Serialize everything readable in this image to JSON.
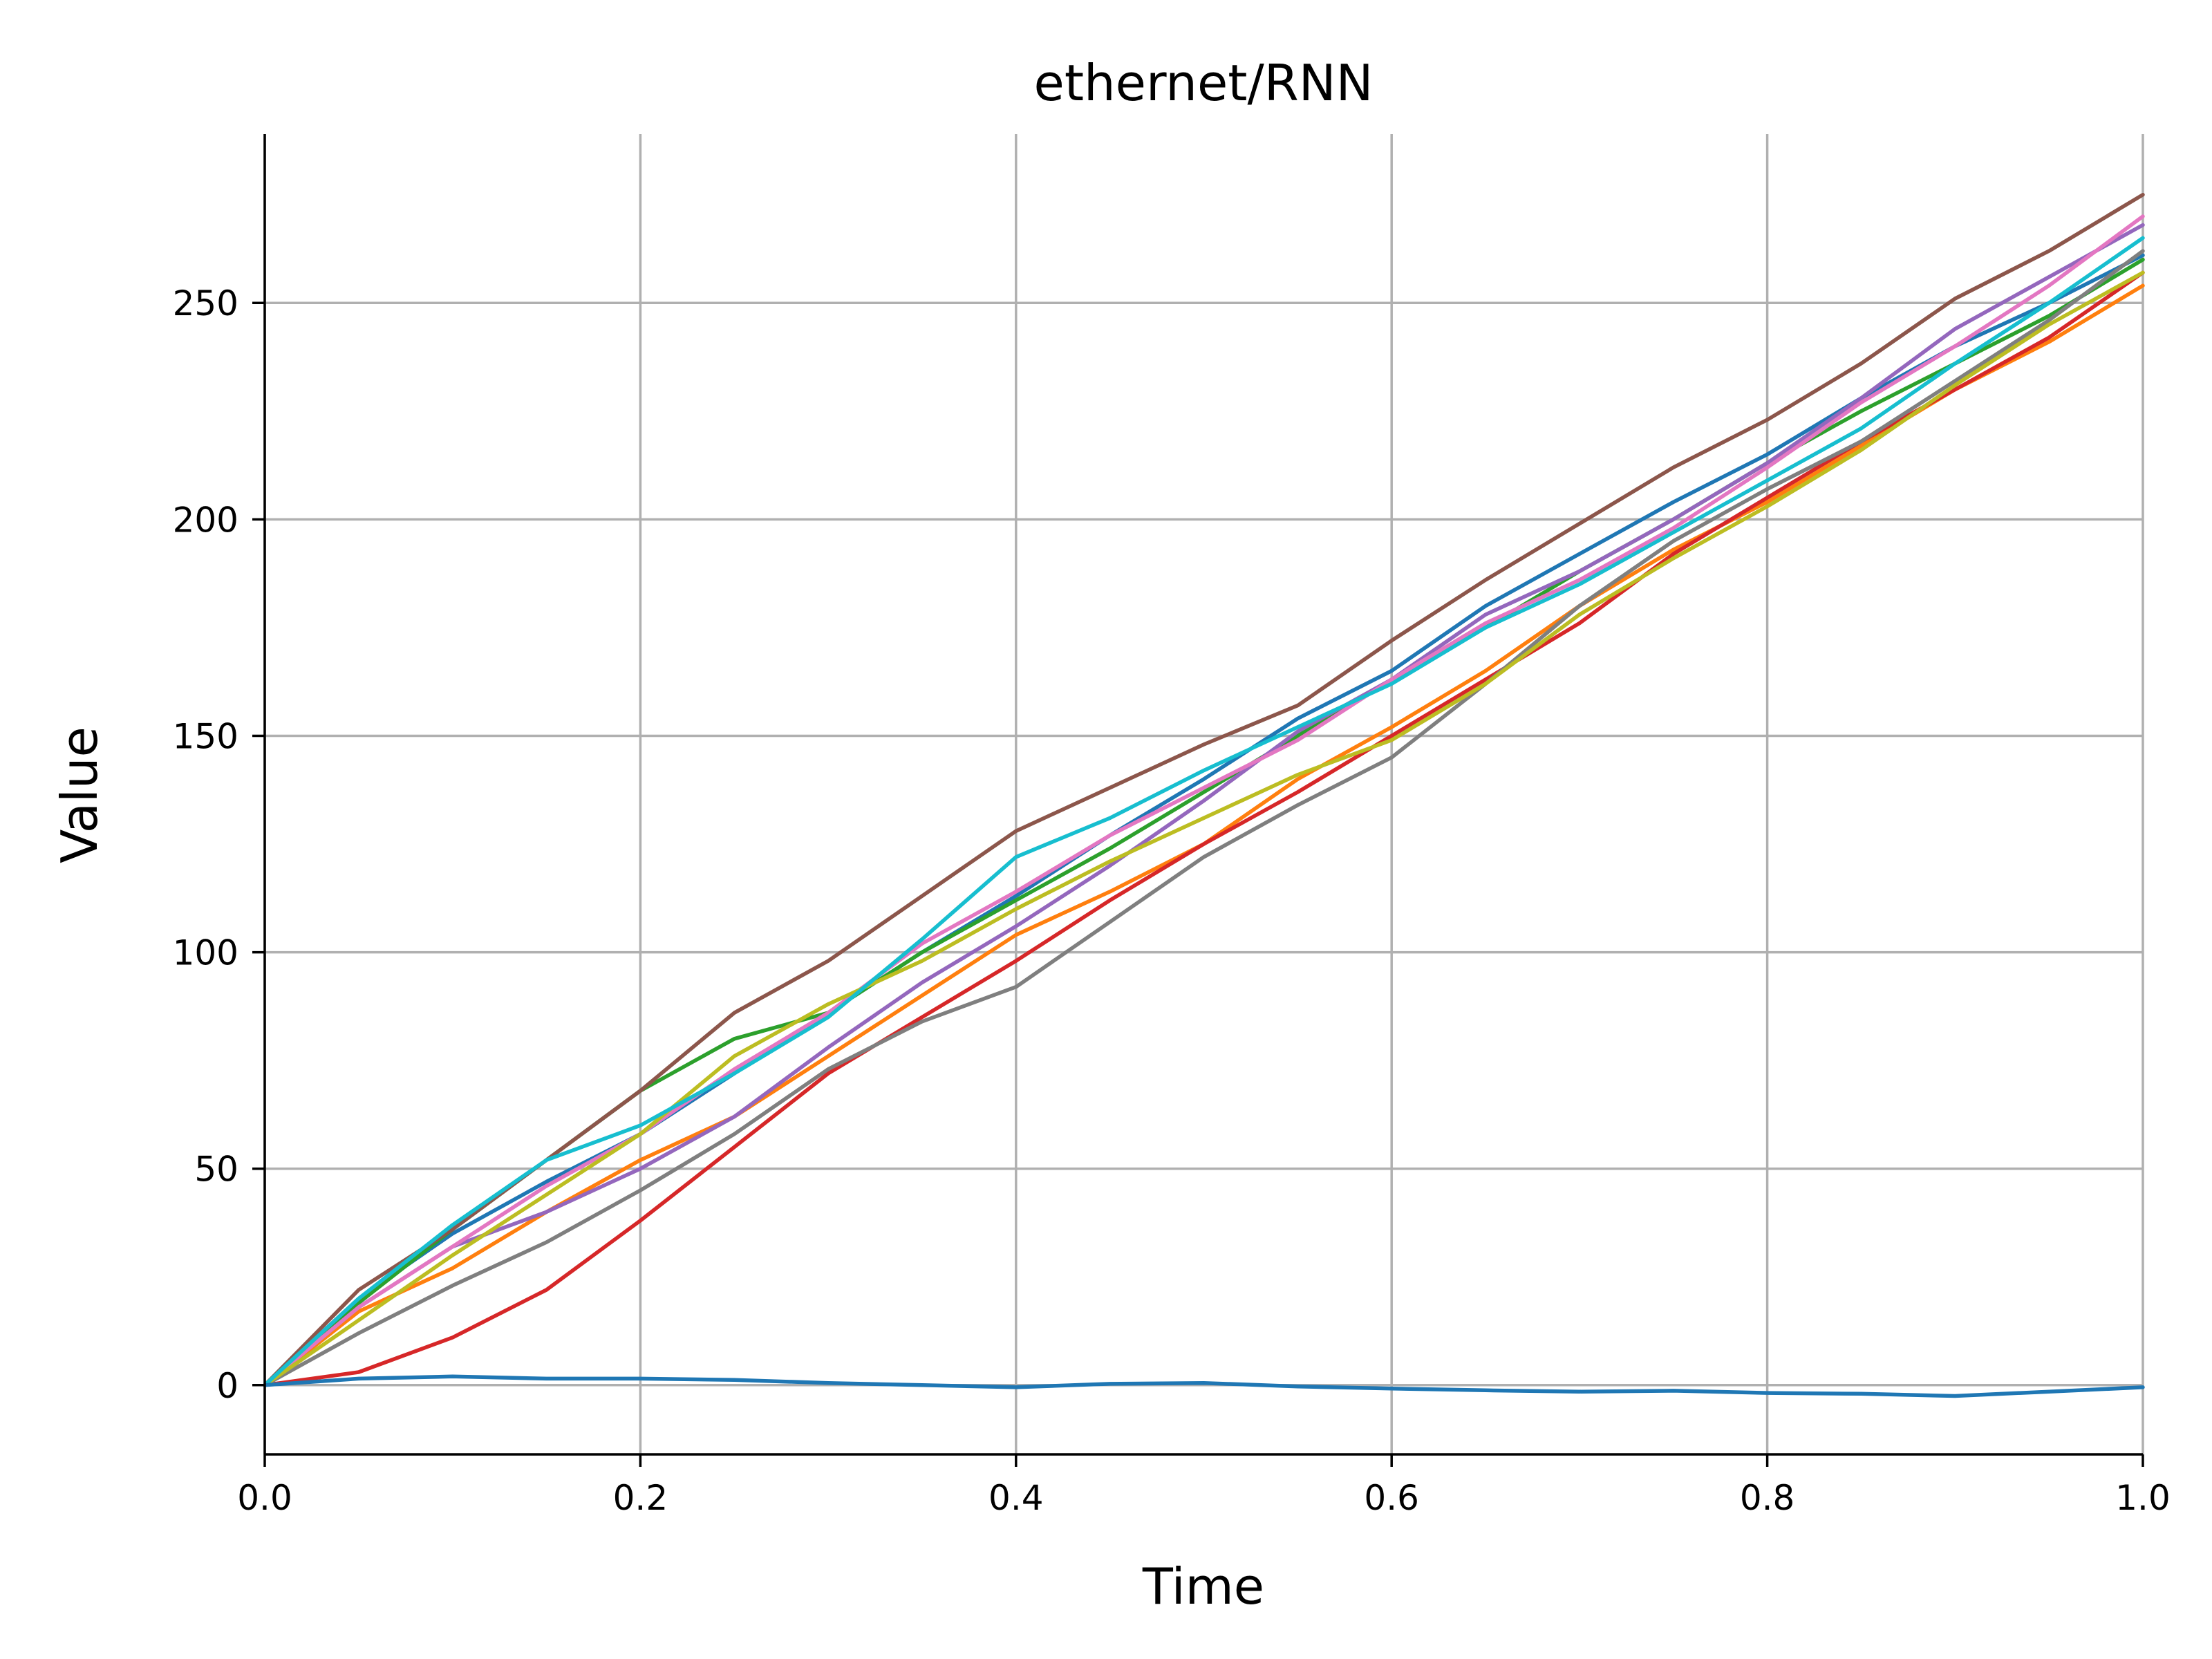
{
  "chart_data": {
    "type": "line",
    "title": "ethernet/RNN",
    "xlabel": "Time",
    "ylabel": "Value",
    "xlim": [
      0.0,
      1.0
    ],
    "ylim": [
      -16,
      289
    ],
    "grid": true,
    "x_ticks": [
      "0.0",
      "0.2",
      "0.4",
      "0.6",
      "0.8",
      "1.0"
    ],
    "x_tick_values": [
      0.0,
      0.2,
      0.4,
      0.6,
      0.8,
      1.0
    ],
    "y_ticks": [
      "0",
      "50",
      "100",
      "150",
      "200",
      "250"
    ],
    "y_tick_values": [
      0,
      50,
      100,
      150,
      200,
      250
    ],
    "x": [
      0.0,
      0.05,
      0.1,
      0.15,
      0.2,
      0.25,
      0.3,
      0.35,
      0.4,
      0.45,
      0.5,
      0.55,
      0.6,
      0.65,
      0.7,
      0.75,
      0.8,
      0.85,
      0.9,
      0.95,
      1.0
    ],
    "series": [
      {
        "color": "#1f77b4",
        "values": [
          0,
          20,
          35,
          47,
          58,
          72,
          86,
          100,
          113,
          127,
          140,
          154,
          165,
          180,
          192,
          204,
          215,
          228,
          240,
          250,
          261
        ]
      },
      {
        "color": "#ff7f0e",
        "values": [
          0,
          17,
          27,
          40,
          52,
          62,
          76,
          90,
          104,
          114,
          125,
          140,
          152,
          165,
          180,
          193,
          204,
          217,
          230,
          241,
          254
        ]
      },
      {
        "color": "#2ca02c",
        "values": [
          0,
          19,
          36,
          52,
          68,
          80,
          86,
          100,
          112,
          124,
          137,
          150,
          163,
          175,
          188,
          200,
          213,
          225,
          236,
          247,
          260
        ]
      },
      {
        "color": "#d62728",
        "values": [
          0,
          3,
          11,
          22,
          38,
          55,
          72,
          85,
          98,
          112,
          125,
          137,
          150,
          163,
          176,
          192,
          205,
          218,
          230,
          242,
          257
        ]
      },
      {
        "color": "#9467bd",
        "values": [
          0,
          18,
          32,
          40,
          50,
          62,
          78,
          93,
          106,
          120,
          135,
          151,
          163,
          178,
          188,
          200,
          213,
          228,
          244,
          256,
          268
        ]
      },
      {
        "color": "#8c564b",
        "values": [
          0,
          22,
          36,
          52,
          68,
          86,
          98,
          113,
          128,
          138,
          148,
          157,
          172,
          186,
          199,
          212,
          223,
          236,
          251,
          262,
          275
        ]
      },
      {
        "color": "#e377c2",
        "values": [
          0,
          18,
          32,
          46,
          58,
          73,
          86,
          102,
          114,
          127,
          138,
          149,
          163,
          176,
          186,
          198,
          212,
          227,
          240,
          254,
          270
        ]
      },
      {
        "color": "#7f7f7f",
        "values": [
          0,
          12,
          23,
          33,
          45,
          58,
          73,
          84,
          92,
          107,
          122,
          134,
          145,
          162,
          180,
          195,
          207,
          218,
          232,
          246,
          262
        ]
      },
      {
        "color": "#bcbd22",
        "values": [
          0,
          15,
          30,
          44,
          58,
          76,
          88,
          98,
          110,
          121,
          131,
          141,
          149,
          162,
          178,
          191,
          203,
          216,
          231,
          245,
          257
        ]
      },
      {
        "color": "#17becf",
        "values": [
          0,
          20,
          37,
          52,
          60,
          72,
          85,
          103,
          122,
          131,
          142,
          152,
          162,
          175,
          185,
          197,
          209,
          221,
          236,
          250,
          265
        ]
      },
      {
        "color": "#1f77b4",
        "values": [
          0,
          1.5,
          2,
          1.5,
          1.5,
          1.2,
          0.5,
          0,
          -0.5,
          0.3,
          0.5,
          -0.3,
          -0.8,
          -1.2,
          -1.5,
          -1.3,
          -1.8,
          -2,
          -2.5,
          -1.5,
          -0.5
        ]
      }
    ]
  }
}
